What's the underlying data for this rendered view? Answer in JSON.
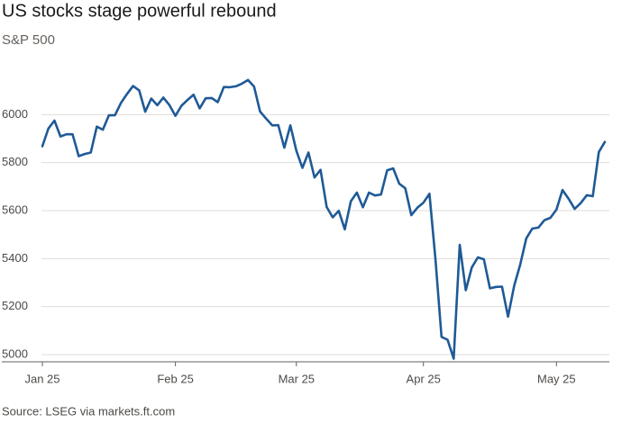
{
  "chart_data": {
    "type": "line",
    "title": "US stocks stage powerful rebound",
    "subtitle": "S&P 500",
    "source": "Source: LSEG via markets.ft.com",
    "categories": [
      "Jan 25",
      null,
      null,
      null,
      null,
      null,
      null,
      null,
      null,
      null,
      null,
      null,
      null,
      null,
      null,
      null,
      null,
      null,
      null,
      null,
      null,
      null,
      "Feb 25",
      null,
      null,
      null,
      null,
      null,
      null,
      null,
      null,
      null,
      null,
      null,
      null,
      null,
      null,
      null,
      null,
      null,
      null,
      null,
      "Mar 25",
      null,
      null,
      null,
      null,
      null,
      null,
      null,
      null,
      null,
      null,
      null,
      null,
      null,
      null,
      null,
      null,
      null,
      null,
      null,
      null,
      "Apr 25",
      null,
      null,
      null,
      null,
      null,
      null,
      null,
      null,
      null,
      null,
      null,
      null,
      null,
      null,
      null,
      null,
      null,
      null,
      null,
      null,
      null,
      "May 25",
      null,
      null,
      null,
      null,
      null,
      null,
      null,
      null
    ],
    "series": [
      {
        "name": "S&P 500",
        "color": "#1f5a96",
        "values": [
          5868,
          5942,
          5975,
          5909,
          5918,
          5918,
          5827,
          5836,
          5842,
          5950,
          5937,
          5997,
          5997,
          6049,
          6086,
          6119,
          6101,
          6012,
          6067,
          6039,
          6071,
          6040,
          5995,
          6037,
          6061,
          6083,
          6026,
          6068,
          6069,
          6052,
          6115,
          6114,
          6118,
          6129,
          6144,
          6117,
          6013,
          5983,
          5955,
          5956,
          5862,
          5955,
          5849,
          5778,
          5842,
          5738,
          5770,
          5615,
          5572,
          5599,
          5522,
          5639,
          5675,
          5614,
          5675,
          5663,
          5667,
          5768,
          5776,
          5712,
          5693,
          5581,
          5612,
          5633,
          5670,
          5396,
          5074,
          5062,
          4983,
          5457,
          5268,
          5363,
          5405,
          5397,
          5276,
          5282,
          5283,
          5158,
          5287,
          5375,
          5484,
          5525,
          5529,
          5560,
          5570,
          5604,
          5686,
          5650,
          5607,
          5631,
          5664,
          5660,
          5844,
          5886
        ]
      }
    ],
    "ylim": [
      4970,
      6170
    ],
    "yticks": [
      5000,
      5200,
      5400,
      5600,
      5800,
      6000
    ],
    "grid": true
  }
}
